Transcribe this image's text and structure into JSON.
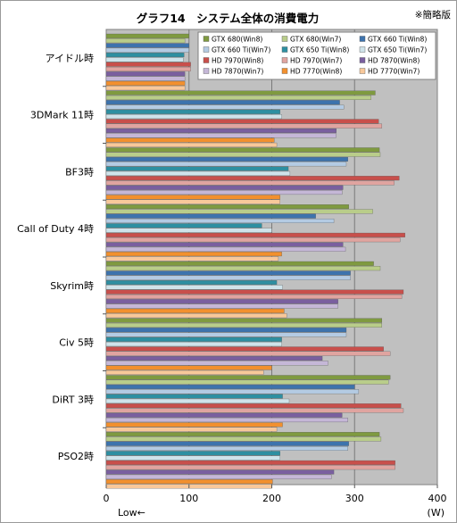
{
  "chart_data": {
    "type": "bar",
    "orientation": "horizontal",
    "title": "グラフ14　システム全体の消費電力",
    "note": "※簡略版",
    "xlabel": "(W)",
    "low_label": "Low←",
    "xlim": [
      0,
      400
    ],
    "xticks": [
      0,
      100,
      200,
      300,
      400
    ],
    "grid": true,
    "legend_position": "top-right",
    "categories": [
      "アイドル時",
      "3DMark 11時",
      "BF3時",
      "Call of Duty 4時",
      "Skyrim時",
      "Civ 5時",
      "DiRT 3時",
      "PSO2時"
    ],
    "series": [
      {
        "name": "GTX 680(Win8)",
        "color": "#7f9a40",
        "values": [
          100,
          325,
          330,
          293,
          323,
          333,
          343,
          330
        ]
      },
      {
        "name": "GTX 680(Win7)",
        "color": "#b9cd8a",
        "values": [
          95,
          320,
          331,
          322,
          331,
          333,
          341,
          332
        ]
      },
      {
        "name": "GTX 660 Ti(Win8)",
        "color": "#3d73ad",
        "values": [
          100,
          282,
          292,
          253,
          295,
          290,
          300,
          293
        ]
      },
      {
        "name": "GTX 660 Ti(Win7)",
        "color": "#b4cbe3",
        "values": [
          100,
          287,
          290,
          275,
          295,
          290,
          305,
          292
        ]
      },
      {
        "name": "GTX 650 Ti(Win8)",
        "color": "#2e8fa1",
        "values": [
          94,
          210,
          220,
          188,
          206,
          212,
          213,
          210
        ]
      },
      {
        "name": "GTX 650 Ti(Win7)",
        "color": "#cfe3ea",
        "values": [
          93,
          212,
          222,
          200,
          213,
          212,
          221,
          210
        ]
      },
      {
        "name": "HD 7970(Win8)",
        "color": "#c84f4b",
        "values": [
          102,
          329,
          354,
          361,
          359,
          335,
          356,
          349
        ]
      },
      {
        "name": "HD 7970(Win7)",
        "color": "#e0a4a0",
        "values": [
          102,
          333,
          348,
          355,
          357,
          343,
          359,
          349
        ]
      },
      {
        "name": "HD 7870(Win8)",
        "color": "#7a5f9f",
        "values": [
          95,
          278,
          286,
          286,
          280,
          261,
          285,
          275
        ]
      },
      {
        "name": "HD 7870(Win7)",
        "color": "#c5b7d7",
        "values": [
          95,
          278,
          285,
          289,
          280,
          268,
          292,
          272
        ]
      },
      {
        "name": "HD 7770(Win8)",
        "color": "#f2902e",
        "values": [
          95,
          203,
          210,
          212,
          215,
          200,
          213,
          201
        ]
      },
      {
        "name": "HD 7770(Win7)",
        "color": "#f8c89a",
        "values": [
          95,
          206,
          210,
          208,
          218,
          190,
          206,
          200
        ]
      }
    ]
  }
}
